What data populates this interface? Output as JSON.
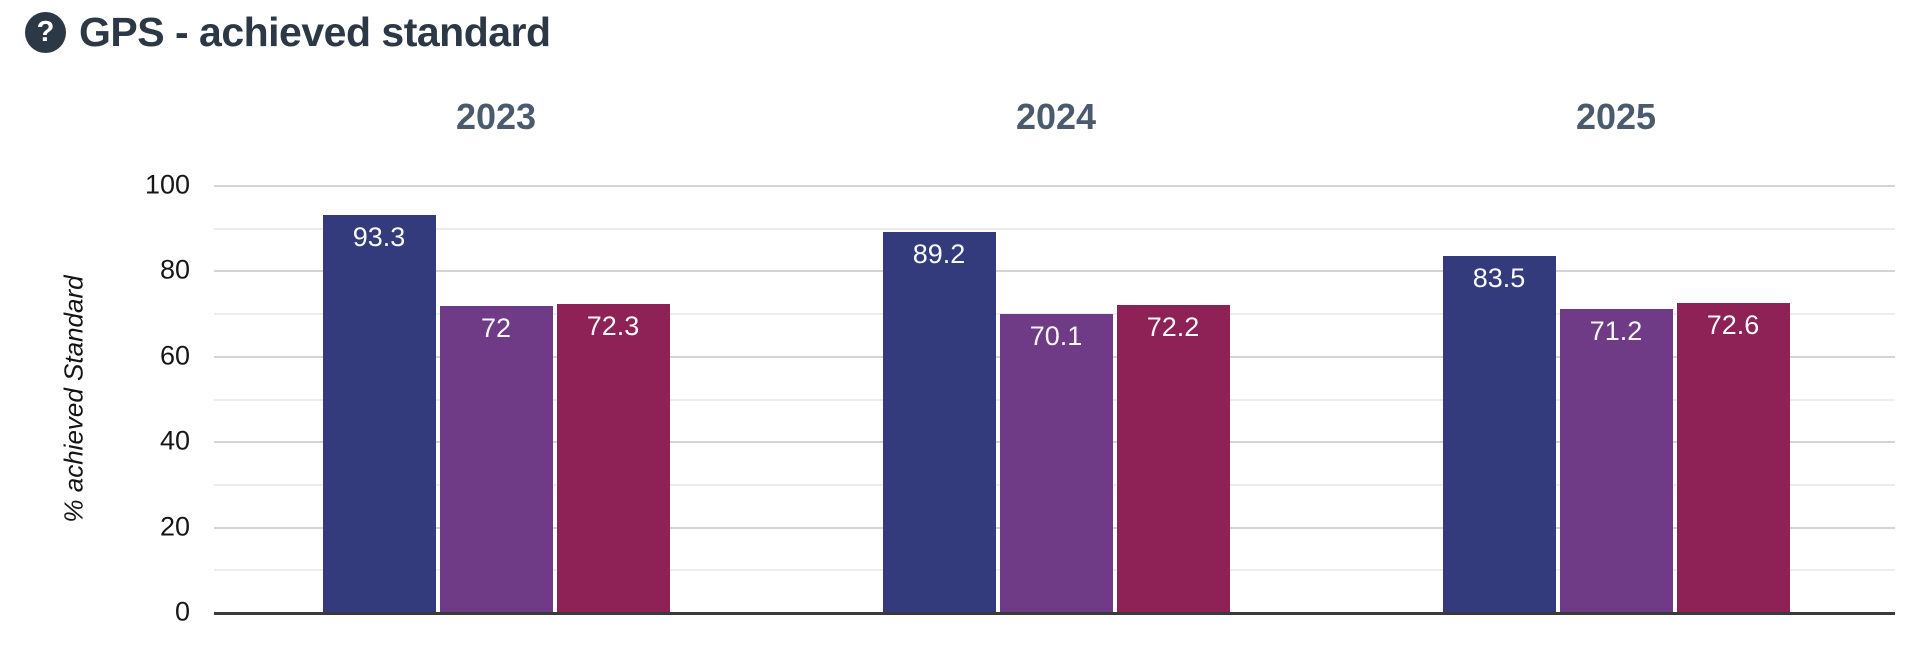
{
  "header": {
    "title": "GPS - achieved standard",
    "help_icon_glyph": "?"
  },
  "chart_data": {
    "type": "bar",
    "title": "GPS - achieved standard",
    "categories": [
      "2023",
      "2024",
      "2025"
    ],
    "series": [
      {
        "name": "dark-blue",
        "color": "#343B7D",
        "values": [
          93.3,
          89.2,
          83.5
        ],
        "labels": [
          "93.3",
          "89.2",
          "83.5"
        ]
      },
      {
        "name": "purple",
        "color": "#6F3B87",
        "values": [
          72,
          70.1,
          71.2
        ],
        "labels": [
          "72",
          "70.1",
          "71.2"
        ]
      },
      {
        "name": "crimson",
        "color": "#8E2155",
        "values": [
          72.3,
          72.2,
          72.6
        ],
        "labels": [
          "72.3",
          "72.2",
          "72.6"
        ]
      }
    ],
    "ylabel": "% achieved Standard",
    "ylim": [
      0,
      100
    ],
    "yticks": [
      0,
      20,
      40,
      60,
      80,
      100
    ],
    "grid_minor_step": 10,
    "grid": true,
    "legend_position": "none",
    "value_labels_position": "inside-top"
  },
  "colors": {
    "title_text": "#2C3845",
    "year_header_text": "#4C5A6E",
    "axis_line": "#3A3A3A",
    "grid_major": "#D5D5D5",
    "grid_minor": "#EDEDED",
    "tick_label": "#161616",
    "bar_value_label": "#FAFAFC"
  }
}
